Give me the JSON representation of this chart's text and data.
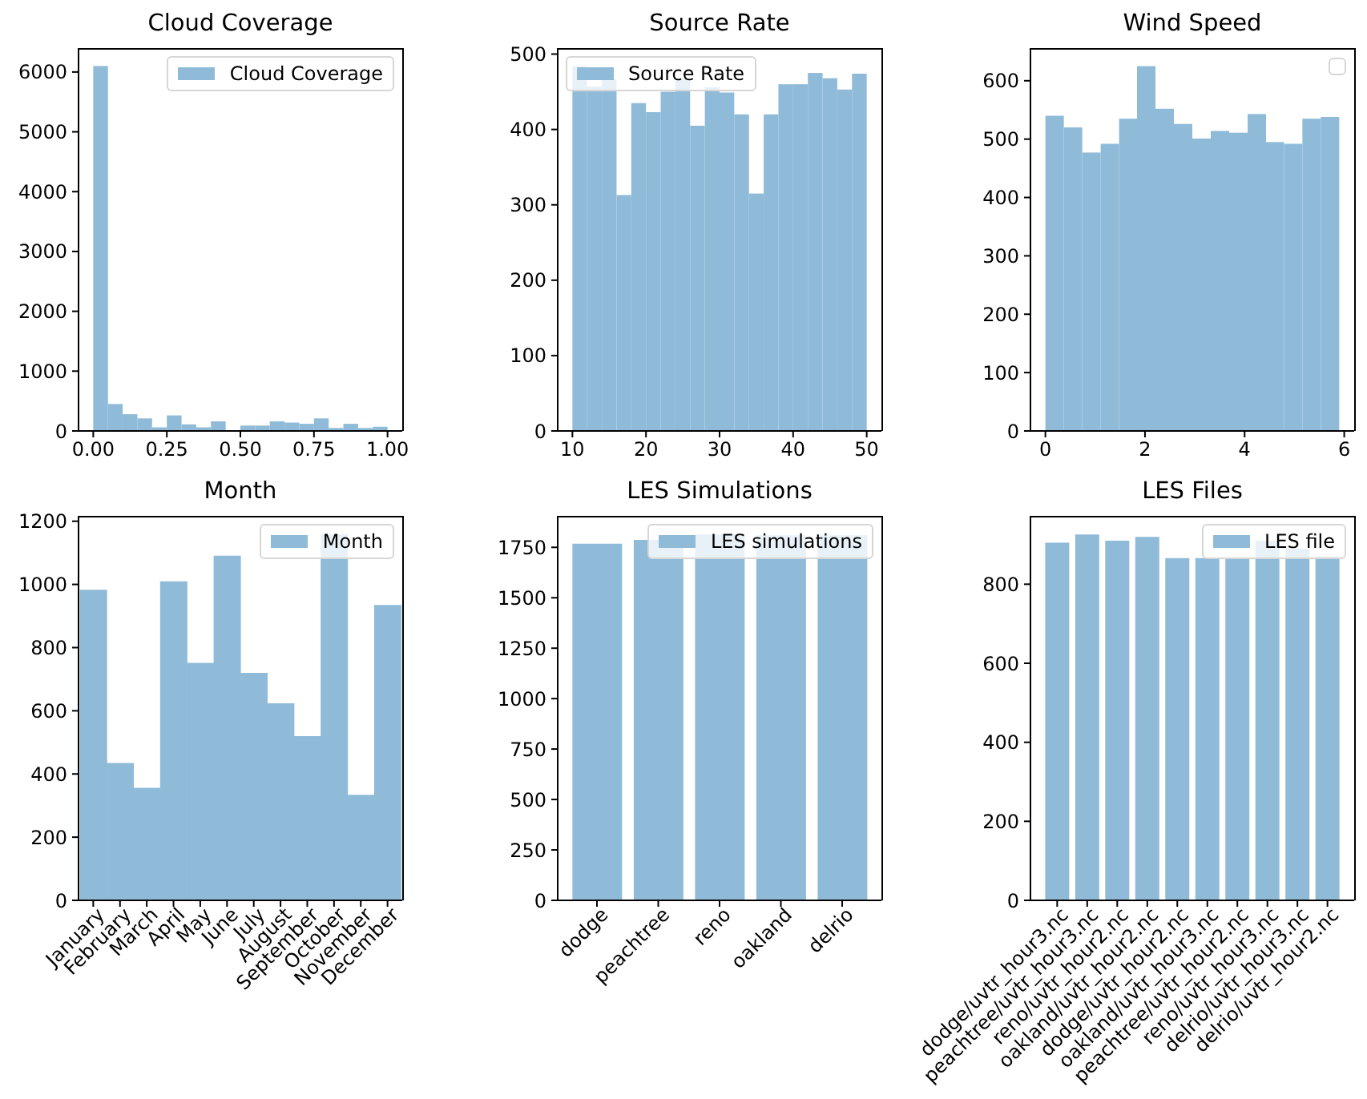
{
  "chart_data": [
    {
      "type": "histogram",
      "title": "Cloud Coverage",
      "bins": [
        0,
        0.05,
        0.1,
        0.15,
        0.2,
        0.25,
        0.3,
        0.35,
        0.4,
        0.45,
        0.5,
        0.55,
        0.6,
        0.65,
        0.7,
        0.75,
        0.8,
        0.85,
        0.9,
        0.95,
        1
      ],
      "series": [
        {
          "name": "Cloud Coverage",
          "color": "#8fbbd9",
          "values": [
            6100,
            450,
            280,
            210,
            60,
            260,
            110,
            60,
            160,
            0,
            90,
            90,
            160,
            140,
            120,
            210,
            50,
            120,
            50,
            70
          ]
        }
      ],
      "xlim": [
        -0.05,
        1.05
      ],
      "xticks": [
        {
          "value": 0,
          "label": "0.00"
        },
        {
          "value": 0.25,
          "label": "0.25"
        },
        {
          "value": 0.5,
          "label": "0.50"
        },
        {
          "value": 0.75,
          "label": "0.75"
        },
        {
          "value": 1,
          "label": "1.00"
        }
      ],
      "ylim": [
        0,
        6400
      ],
      "yticks": [
        0,
        1000,
        2000,
        3000,
        4000,
        5000,
        6000
      ],
      "legend": "top right"
    },
    {
      "type": "histogram",
      "title": "Source Rate",
      "bins": [
        10,
        12,
        14,
        16,
        18,
        20,
        22,
        24,
        26,
        28,
        30,
        32,
        34,
        36,
        38,
        40,
        42,
        44,
        46,
        48,
        50
      ],
      "series": [
        {
          "name": "Source Rate",
          "color": "#8fbbd9",
          "values": [
            484,
            457,
            467,
            313,
            435,
            423,
            450,
            467,
            405,
            456,
            449,
            420,
            315,
            420,
            460,
            460,
            475,
            468,
            453,
            474
          ]
        }
      ],
      "xlim": [
        8,
        52
      ],
      "xticks": [
        10,
        20,
        30,
        40,
        50
      ],
      "ylim": [
        0,
        508
      ],
      "yticks": [
        0,
        100,
        200,
        300,
        400,
        500
      ],
      "legend": "top left"
    },
    {
      "type": "histogram",
      "title": "Wind Speed",
      "bins": [
        0,
        0.37,
        0.74,
        1.11,
        1.48,
        1.84,
        2.21,
        2.58,
        2.95,
        3.32,
        3.69,
        4.06,
        4.43,
        4.79,
        5.16,
        5.53,
        5.9
      ],
      "series": [
        {
          "color": "#8fbbd9",
          "values": [
            540,
            520,
            477,
            492,
            535,
            625,
            552,
            526,
            501,
            514,
            511,
            543,
            495,
            492,
            535,
            538
          ]
        }
      ],
      "xlim": [
        -0.3,
        6.2
      ],
      "xticks": [
        0,
        2,
        4,
        6
      ],
      "ylim": [
        0,
        656
      ],
      "yticks": [
        0,
        100,
        200,
        300,
        400,
        500,
        600
      ]
    },
    {
      "type": "bar",
      "title": "Month",
      "categories": [
        "January",
        "February",
        "March",
        "April",
        "May",
        "June",
        "July",
        "August",
        "September",
        "October",
        "November",
        "December"
      ],
      "series": [
        {
          "name": "Month",
          "color": "#8fbbd9",
          "values": [
            983,
            435,
            356,
            1010,
            752,
            1091,
            720,
            624,
            520,
            1159,
            334,
            935
          ]
        }
      ],
      "ylim": [
        0,
        1217
      ],
      "yticks": [
        0,
        200,
        400,
        600,
        800,
        1000,
        1200
      ],
      "legend": "top right"
    },
    {
      "type": "bar",
      "title": "LES Simulations",
      "categories": [
        "dodge",
        "peachtree",
        "reno",
        "oakland",
        "delrio"
      ],
      "series": [
        {
          "name": "LES simulations",
          "color": "#8fbbd9",
          "values": [
            1768,
            1787,
            1815,
            1810,
            1810
          ]
        }
      ],
      "ylim": [
        0,
        1906
      ],
      "yticks": [
        0,
        250,
        500,
        750,
        1000,
        1250,
        1500,
        1750
      ],
      "legend": "top right"
    },
    {
      "type": "bar",
      "title": "LES Files",
      "categories": [
        "dodge/uvtr_hour3.nc",
        "peachtree/uvtr_hour3.nc",
        "reno/uvtr_hour2.nc",
        "oakland/uvtr_hour2.nc",
        "dodge/uvtr_hour2.nc",
        "oakland/uvtr_hour3.nc",
        "peachtree/uvtr_hour2.nc",
        "reno/uvtr_hour3.nc",
        "delrio/uvtr_hour3.nc",
        "delrio/uvtr_hour2.nc"
      ],
      "series": [
        {
          "name": "LES file",
          "color": "#8fbbd9",
          "values": [
            905,
            926,
            910,
            920,
            866,
            866,
            866,
            910,
            890,
            870
          ]
        }
      ],
      "ylim": [
        0,
        973
      ],
      "yticks": [
        0,
        200,
        400,
        600,
        800
      ],
      "legend": "top right"
    }
  ]
}
